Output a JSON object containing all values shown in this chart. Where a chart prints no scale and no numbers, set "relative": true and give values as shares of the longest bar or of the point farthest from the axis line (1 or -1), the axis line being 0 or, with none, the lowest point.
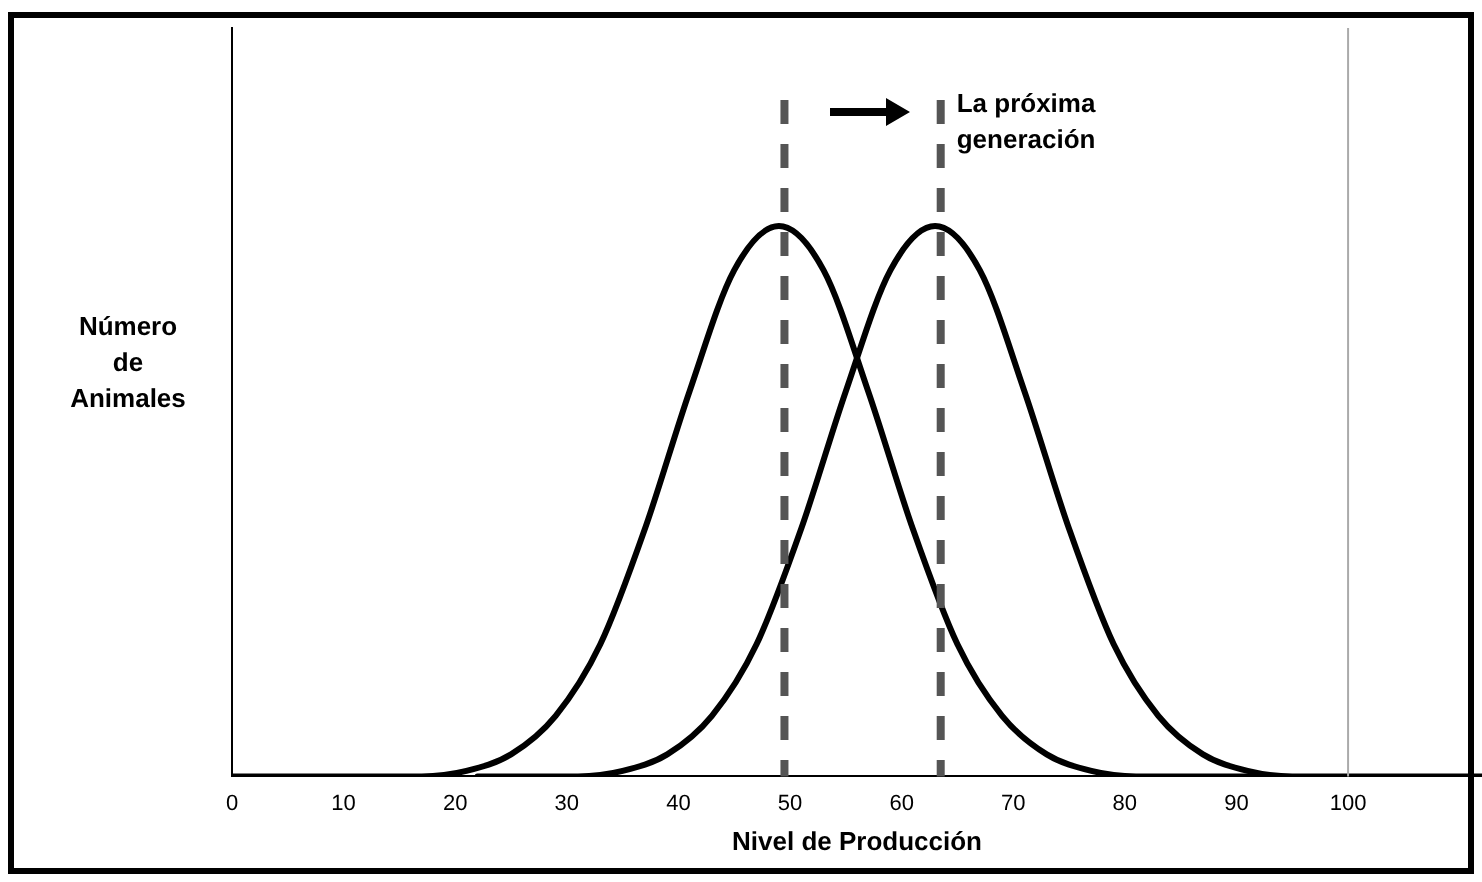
{
  "chart_data": {
    "type": "line",
    "relative": true,
    "xlabel": "Nivel de Producción",
    "ylabel": "Número de Animales",
    "xlim": [
      0,
      112
    ],
    "xticks": [
      0,
      10,
      20,
      30,
      40,
      50,
      60,
      70,
      80,
      90,
      100
    ],
    "series": [
      {
        "color": "#000000",
        "x": [
          0,
          10,
          17,
          21,
          25,
          29,
          33,
          37,
          41,
          45,
          49,
          53,
          57,
          61,
          65,
          69,
          73,
          77,
          81,
          85,
          92
        ],
        "values": [
          0,
          0,
          0,
          0.01,
          0.04,
          0.11,
          0.24,
          0.45,
          0.7,
          0.92,
          1,
          0.92,
          0.7,
          0.45,
          0.24,
          0.11,
          0.04,
          0.01,
          0,
          0,
          0
        ]
      },
      {
        "color": "#000000",
        "x": [
          22,
          31,
          35,
          39,
          43,
          47,
          51,
          55,
          59,
          63,
          67,
          71,
          75,
          79,
          83,
          87,
          91,
          95,
          100,
          112
        ],
        "values": [
          0,
          0,
          0.01,
          0.04,
          0.11,
          0.24,
          0.45,
          0.7,
          0.92,
          1,
          0.92,
          0.7,
          0.45,
          0.24,
          0.11,
          0.04,
          0.01,
          0,
          0,
          0
        ]
      }
    ],
    "ref_lines": [
      {
        "axis": "x",
        "value": 49.5,
        "color": "#555555",
        "line_style": "dashed"
      },
      {
        "axis": "x",
        "value": 63.5,
        "color": "#555555",
        "line_style": "dashed"
      },
      {
        "axis": "x",
        "value": 100,
        "color": "#aaaaaa",
        "line_style": "solid"
      }
    ],
    "annotations": [
      "La próxima generación"
    ],
    "line_style": "solid",
    "marker": "none"
  }
}
